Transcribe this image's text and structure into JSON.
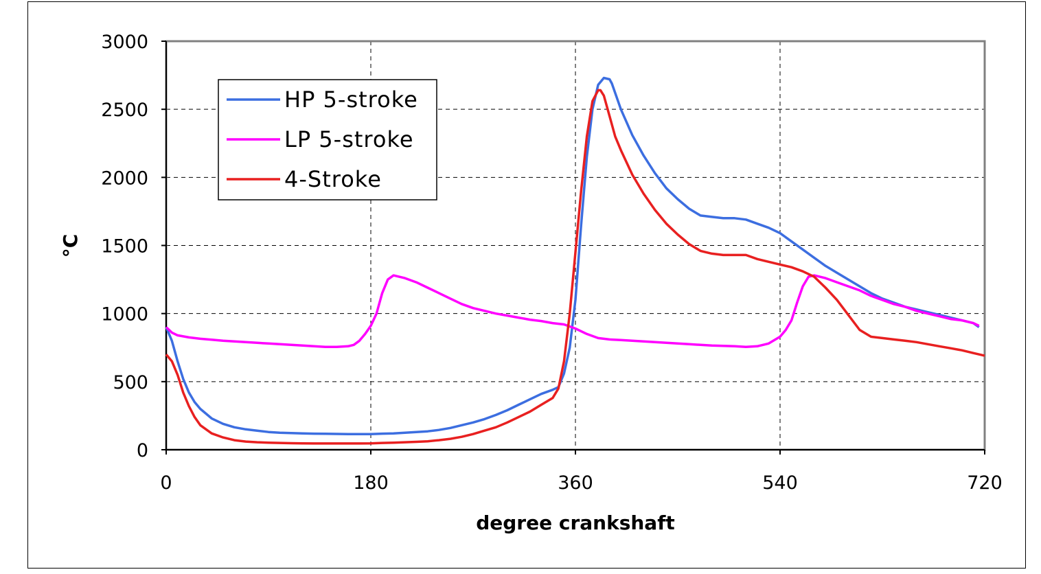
{
  "chart_data": {
    "type": "line",
    "title": "",
    "xlabel": "degree crankshaft",
    "ylabel": "°C",
    "xlim": [
      0,
      720
    ],
    "ylim": [
      0,
      3000
    ],
    "xticks": [
      0,
      180,
      360,
      540,
      720
    ],
    "yticks": [
      0,
      500,
      1000,
      1500,
      2000,
      2500,
      3000
    ],
    "grid": true,
    "legend_position": "top-left",
    "series": [
      {
        "name": "HP 5-stroke",
        "color": "#3c6ee0",
        "x": [
          0,
          5,
          10,
          15,
          20,
          25,
          30,
          40,
          50,
          60,
          70,
          80,
          90,
          100,
          110,
          120,
          130,
          140,
          150,
          160,
          170,
          180,
          190,
          200,
          210,
          220,
          230,
          240,
          250,
          260,
          270,
          280,
          290,
          300,
          310,
          320,
          330,
          340,
          345,
          350,
          355,
          360,
          365,
          370,
          375,
          380,
          385,
          390,
          392,
          395,
          400,
          410,
          420,
          430,
          440,
          450,
          460,
          470,
          480,
          490,
          500,
          510,
          520,
          530,
          540,
          550,
          560,
          570,
          580,
          590,
          600,
          610,
          620,
          630,
          640,
          650,
          660,
          670,
          680,
          690,
          700,
          710,
          715
        ],
        "y": [
          900,
          800,
          650,
          520,
          420,
          350,
          300,
          230,
          190,
          165,
          150,
          140,
          130,
          125,
          122,
          120,
          118,
          117,
          116,
          115,
          115,
          115,
          118,
          120,
          125,
          130,
          135,
          145,
          160,
          180,
          200,
          225,
          255,
          290,
          330,
          370,
          410,
          440,
          460,
          560,
          750,
          1100,
          1650,
          2150,
          2500,
          2680,
          2730,
          2720,
          2690,
          2620,
          2500,
          2310,
          2160,
          2030,
          1920,
          1840,
          1770,
          1720,
          1710,
          1700,
          1700,
          1690,
          1660,
          1630,
          1590,
          1530,
          1470,
          1410,
          1350,
          1300,
          1250,
          1200,
          1150,
          1110,
          1080,
          1050,
          1030,
          1010,
          990,
          970,
          950,
          930,
          900
        ]
      },
      {
        "name": "LP 5-stroke",
        "color": "#ff00ff",
        "x": [
          0,
          5,
          10,
          20,
          30,
          40,
          50,
          60,
          70,
          80,
          90,
          100,
          110,
          120,
          130,
          140,
          150,
          160,
          165,
          170,
          175,
          180,
          185,
          190,
          195,
          200,
          205,
          210,
          220,
          230,
          240,
          250,
          260,
          270,
          280,
          290,
          300,
          310,
          320,
          330,
          340,
          350,
          360,
          370,
          380,
          390,
          400,
          420,
          440,
          460,
          480,
          500,
          510,
          520,
          530,
          540,
          545,
          550,
          555,
          560,
          565,
          570,
          580,
          590,
          600,
          610,
          620,
          630,
          640,
          650,
          660,
          670,
          680,
          690,
          700,
          710,
          715
        ],
        "y": [
          900,
          860,
          840,
          825,
          815,
          808,
          800,
          795,
          790,
          785,
          780,
          775,
          770,
          765,
          760,
          755,
          755,
          760,
          770,
          800,
          850,
          910,
          1000,
          1150,
          1250,
          1280,
          1270,
          1260,
          1230,
          1190,
          1150,
          1110,
          1070,
          1040,
          1020,
          1000,
          985,
          970,
          955,
          945,
          930,
          920,
          890,
          850,
          820,
          810,
          805,
          795,
          785,
          775,
          765,
          760,
          755,
          760,
          780,
          830,
          880,
          950,
          1080,
          1200,
          1270,
          1280,
          1260,
          1230,
          1200,
          1170,
          1130,
          1100,
          1070,
          1050,
          1020,
          1000,
          980,
          960,
          950,
          930,
          910
        ]
      },
      {
        "name": "4-Stroke",
        "color": "#e82020",
        "x": [
          0,
          5,
          10,
          15,
          20,
          25,
          30,
          40,
          50,
          60,
          70,
          80,
          90,
          100,
          110,
          120,
          130,
          140,
          150,
          160,
          170,
          180,
          190,
          200,
          210,
          220,
          230,
          240,
          250,
          260,
          270,
          280,
          290,
          300,
          310,
          320,
          330,
          340,
          345,
          350,
          355,
          360,
          365,
          370,
          375,
          380,
          382,
          385,
          390,
          395,
          400,
          410,
          420,
          430,
          440,
          450,
          460,
          470,
          480,
          490,
          500,
          510,
          520,
          530,
          540,
          550,
          560,
          570,
          580,
          590,
          600,
          610,
          620,
          630,
          640,
          650,
          660,
          670,
          680,
          690,
          700,
          710,
          720
        ],
        "y": [
          700,
          650,
          550,
          420,
          320,
          240,
          180,
          120,
          90,
          70,
          60,
          55,
          52,
          50,
          48,
          47,
          46,
          46,
          46,
          46,
          46,
          47,
          50,
          52,
          55,
          58,
          62,
          70,
          80,
          95,
          115,
          140,
          165,
          200,
          240,
          280,
          330,
          380,
          450,
          650,
          1000,
          1450,
          1900,
          2300,
          2560,
          2640,
          2640,
          2600,
          2450,
          2300,
          2200,
          2020,
          1880,
          1760,
          1660,
          1580,
          1510,
          1460,
          1440,
          1430,
          1430,
          1430,
          1400,
          1380,
          1360,
          1340,
          1310,
          1270,
          1190,
          1100,
          990,
          880,
          830,
          820,
          810,
          800,
          790,
          775,
          760,
          745,
          730,
          710,
          690
        ]
      }
    ]
  }
}
